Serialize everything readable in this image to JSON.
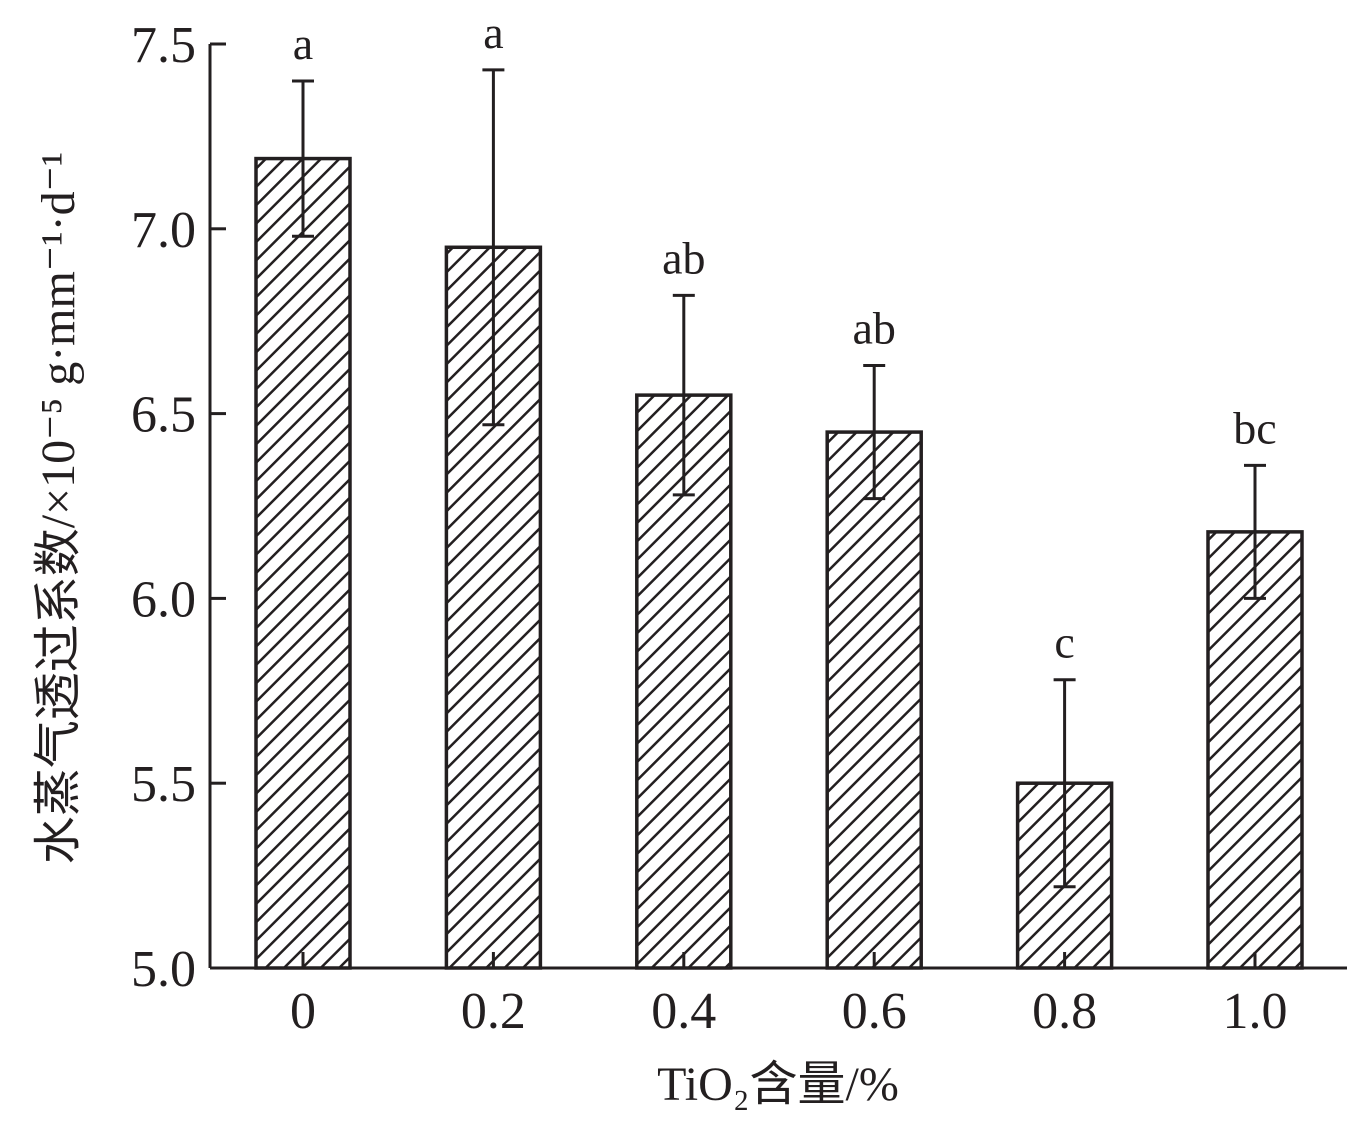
{
  "chart_data": {
    "type": "bar",
    "categories": [
      "0",
      "0.2",
      "0.4",
      "0.6",
      "0.8",
      "1.0"
    ],
    "values": [
      7.19,
      6.95,
      6.55,
      6.45,
      5.5,
      6.18
    ],
    "errors": [
      0.21,
      0.48,
      0.27,
      0.18,
      0.28,
      0.18
    ],
    "significance": [
      "a",
      "a",
      "ab",
      "ab",
      "c",
      "bc"
    ],
    "ylim": [
      5.0,
      7.5
    ],
    "yticks": [
      "5.0",
      "5.5",
      "6.0",
      "6.5",
      "7.0",
      "7.5"
    ],
    "ytick_values": [
      5.0,
      5.5,
      6.0,
      6.5,
      7.0,
      7.5
    ],
    "xlabel": "TiO₂含量/%",
    "ylabel": "水蒸气透过系数/×10⁻⁵ g·mm⁻¹·d⁻¹",
    "grid": false,
    "bar_fill": "diagonal-hatch",
    "colors": {
      "ink": "#231f20",
      "background": "#ffffff"
    }
  }
}
